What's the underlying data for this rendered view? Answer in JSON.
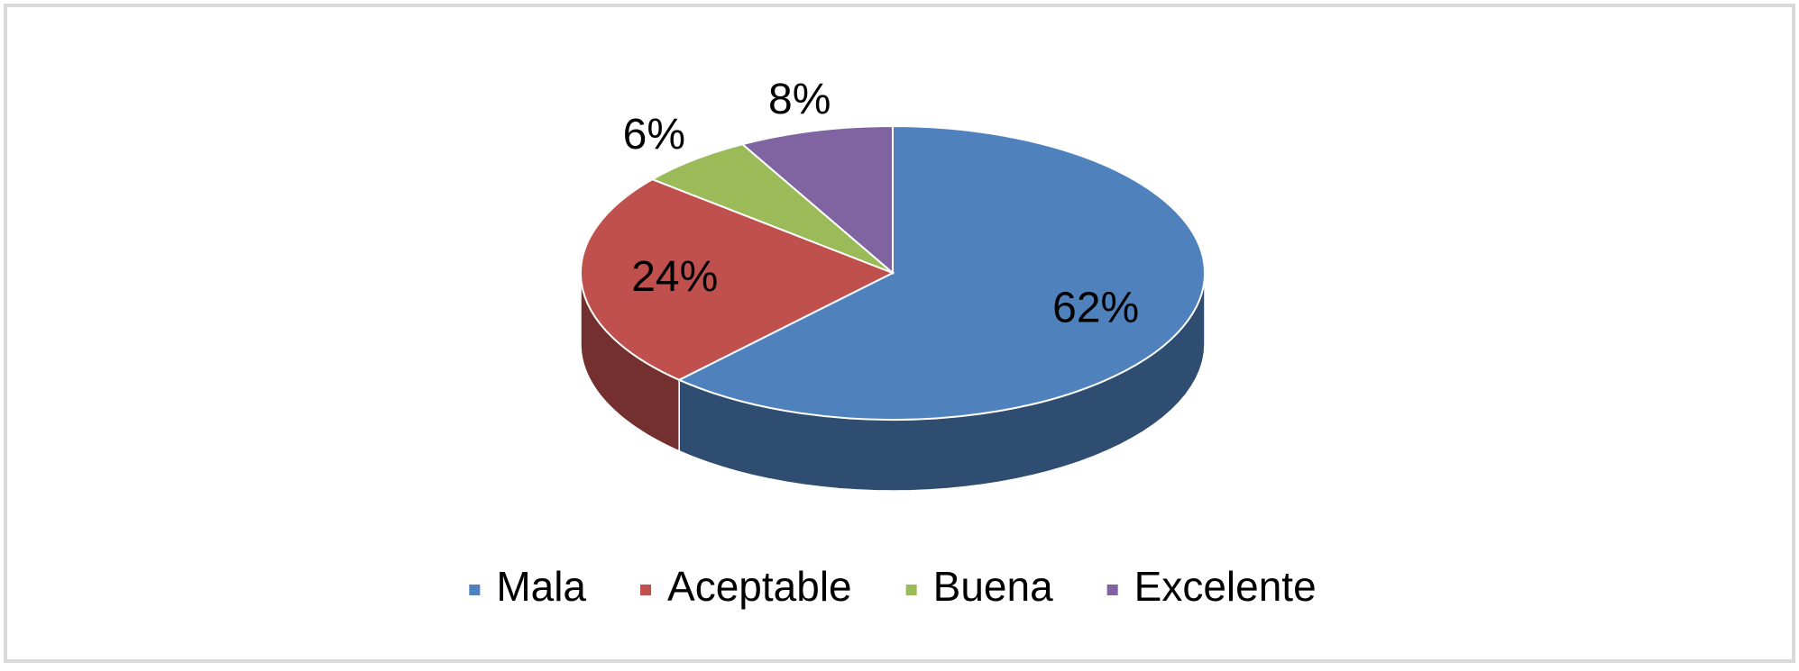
{
  "chart_data": {
    "type": "pie3d",
    "categories": [
      "Mala",
      "Aceptable",
      "Buena",
      "Excelente"
    ],
    "values": [
      62,
      24,
      6,
      8
    ],
    "value_labels": [
      "62%",
      "24%",
      "6%",
      "8%"
    ],
    "colors": [
      "#4f81bd",
      "#c0504d",
      "#9bbb59",
      "#8064a2"
    ],
    "legend": "bottom"
  }
}
